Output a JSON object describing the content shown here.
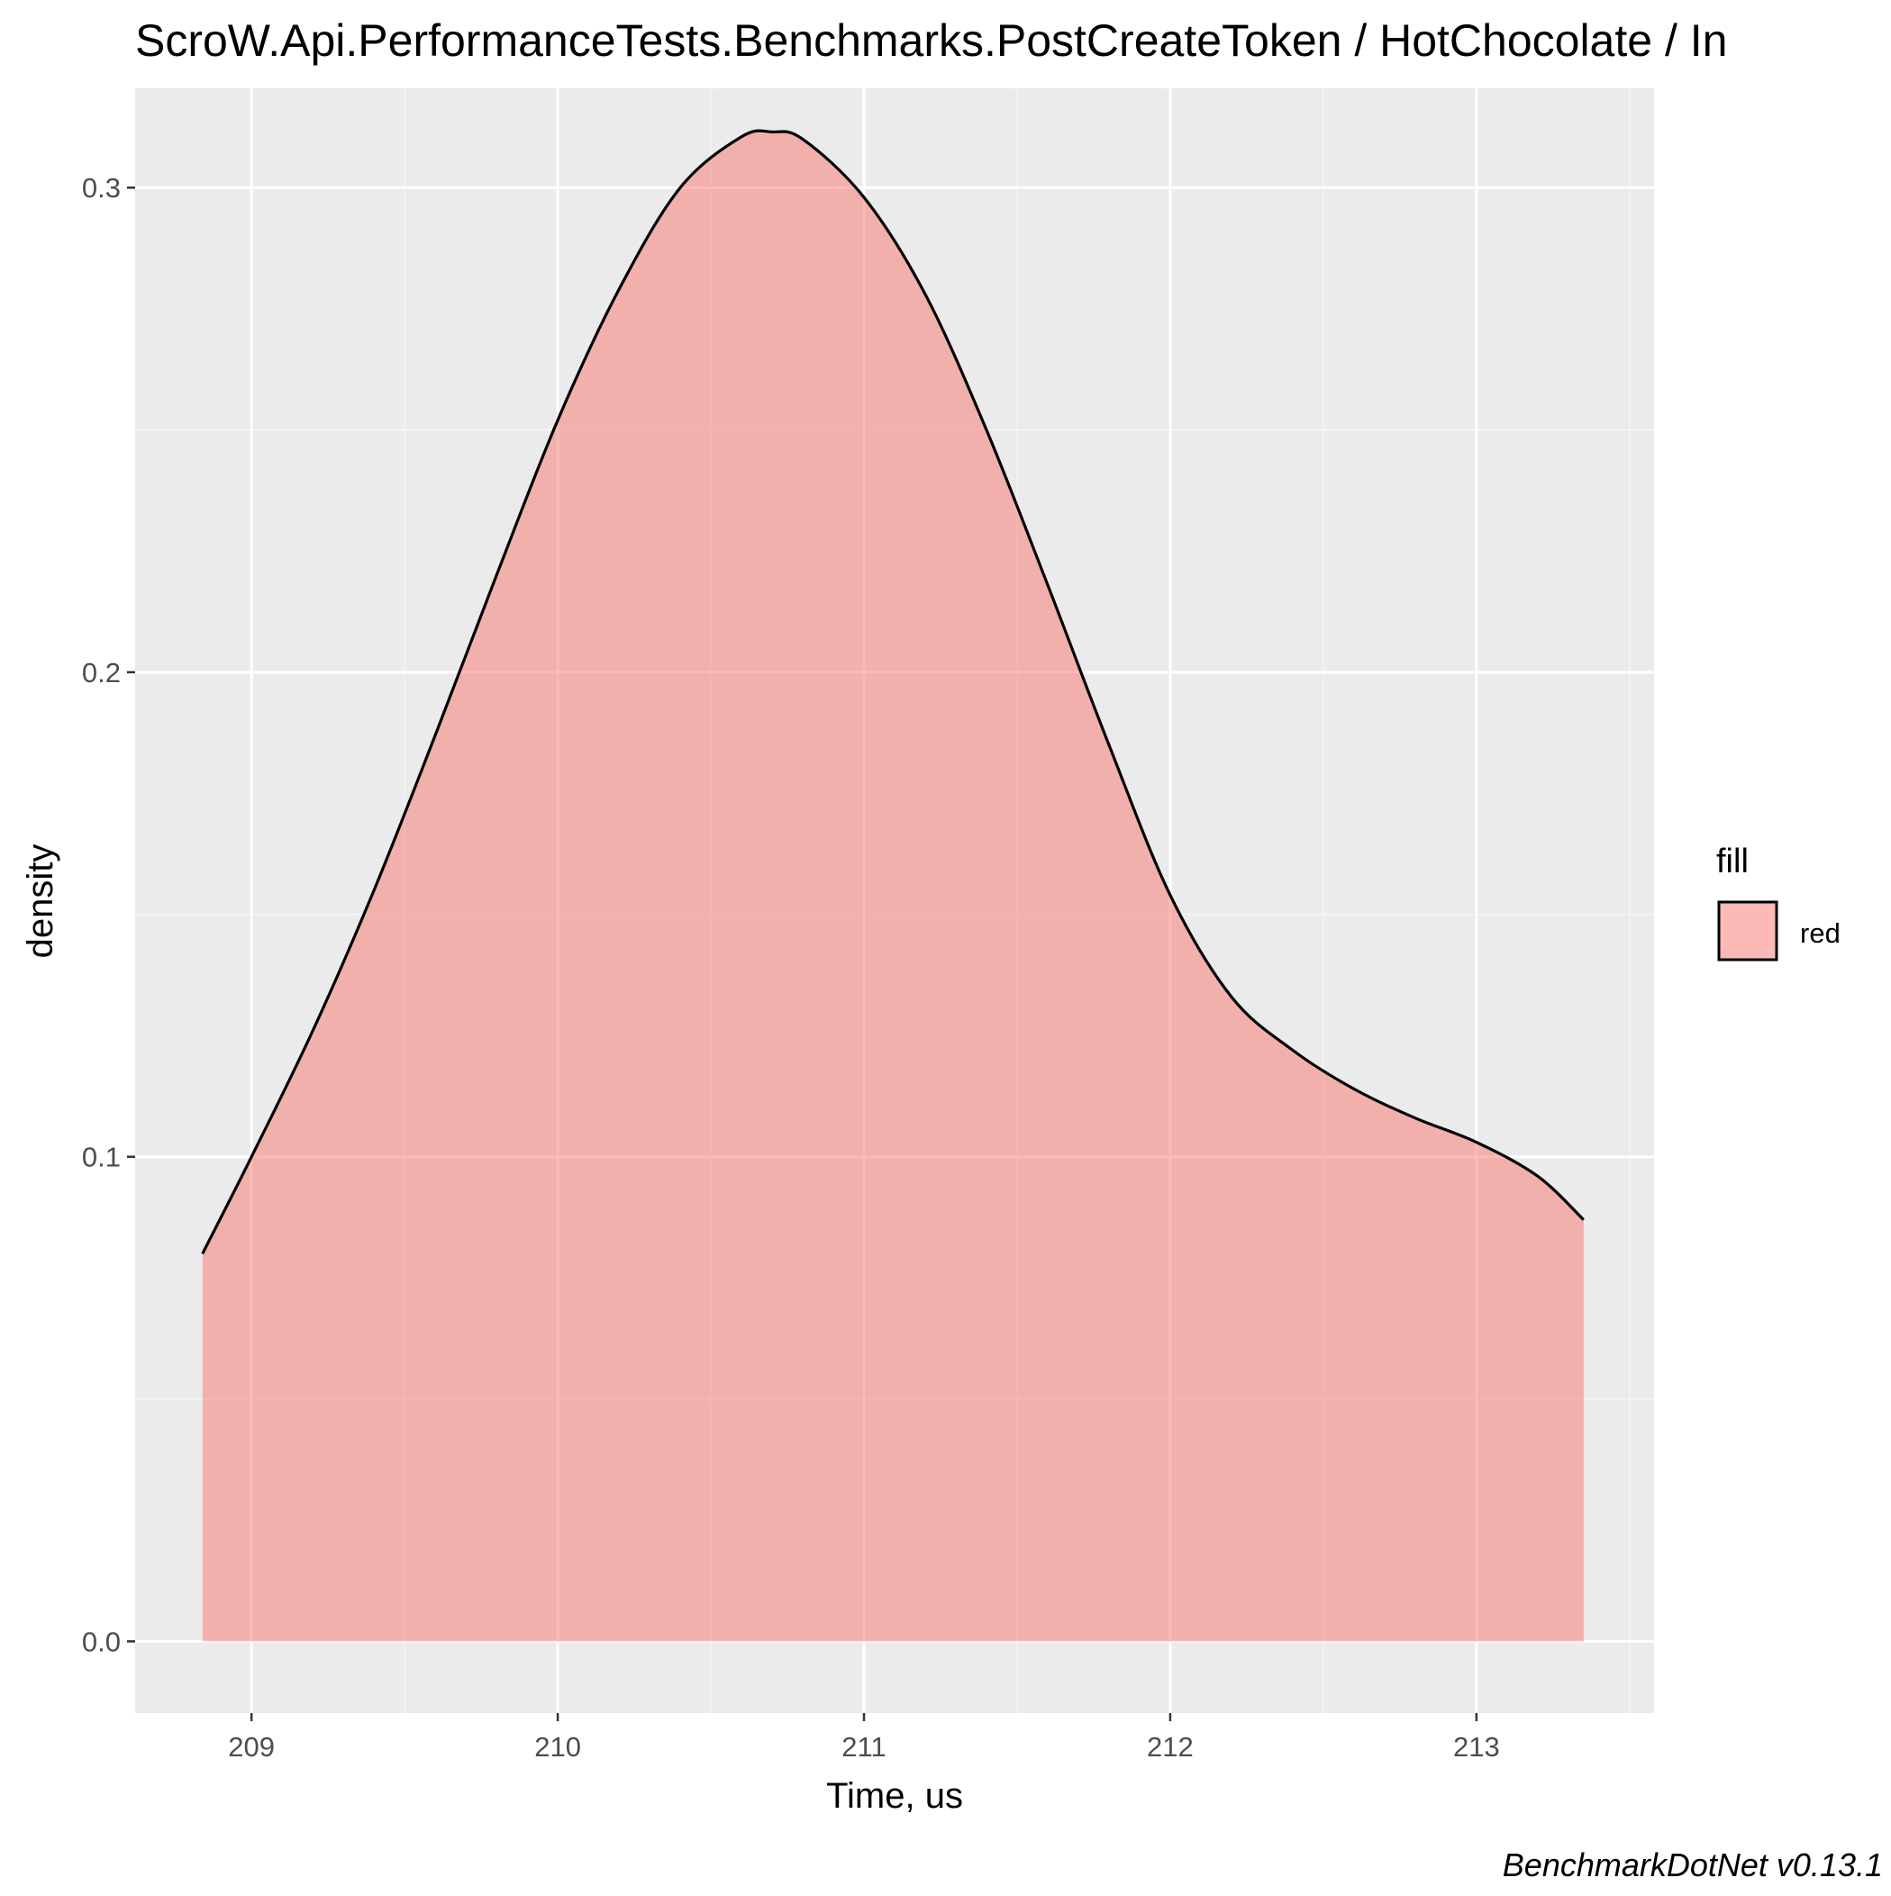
{
  "chart_data": {
    "type": "area",
    "title": "ScroW.Api.PerformanceTests.Benchmarks.PostCreateToken / HotChocolate / In",
    "xlabel": "Time, us",
    "ylabel": "density",
    "caption": "BenchmarkDotNet v0.13.1",
    "xlim": [
      208.62,
      213.58
    ],
    "ylim": [
      -0.0148,
      0.3205
    ],
    "x_ticks": [
      209,
      210,
      211,
      212,
      213
    ],
    "x_tick_labels": [
      "209",
      "210",
      "211",
      "212",
      "213"
    ],
    "y_ticks": [
      0.0,
      0.1,
      0.2,
      0.3
    ],
    "y_tick_labels": [
      "0.0",
      "0.1",
      "0.2",
      "0.3"
    ],
    "grid": true,
    "legend": {
      "title": "fill",
      "position": "right",
      "items": [
        {
          "label": "red",
          "color": "#F8766D"
        }
      ]
    },
    "series": [
      {
        "name": "red",
        "fill": "#F8766D",
        "fill_opacity": 0.5,
        "stroke": "#000000",
        "x": [
          208.84,
          209.0,
          209.2,
          209.4,
          209.6,
          209.8,
          210.0,
          210.2,
          210.4,
          210.6,
          210.7,
          210.8,
          211.0,
          211.2,
          211.4,
          211.6,
          211.8,
          212.0,
          212.2,
          212.4,
          212.6,
          212.8,
          213.0,
          213.2,
          213.35
        ],
        "y": [
          0.08,
          0.1,
          0.126,
          0.155,
          0.187,
          0.22,
          0.252,
          0.279,
          0.3,
          0.3105,
          0.3115,
          0.31,
          0.298,
          0.278,
          0.25,
          0.218,
          0.185,
          0.154,
          0.133,
          0.122,
          0.114,
          0.108,
          0.103,
          0.096,
          0.087
        ]
      }
    ]
  },
  "colors": {
    "panel_background": "#EBEBEB",
    "grid_major": "#FFFFFF",
    "grid_minor": "#F5F5F5",
    "tick_mark": "#333333"
  }
}
